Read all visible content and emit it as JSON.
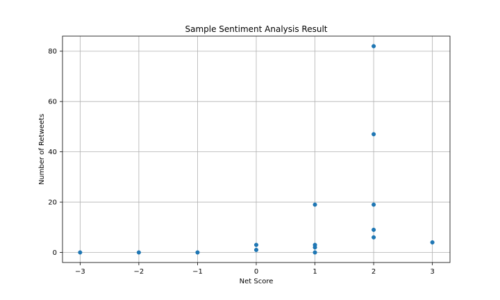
{
  "chart_data": {
    "type": "scatter",
    "title": "Sample Sentiment Analysis Result",
    "xlabel": "Net Score",
    "ylabel": "Number of Retweets",
    "xlim": [
      -3.3,
      3.3
    ],
    "ylim": [
      -4,
      86
    ],
    "xticks": [
      -3,
      -2,
      -1,
      0,
      1,
      2,
      3
    ],
    "xtick_labels": [
      "−3",
      "−2",
      "−1",
      "0",
      "1",
      "2",
      "3"
    ],
    "yticks": [
      0,
      20,
      40,
      60,
      80
    ],
    "ytick_labels": [
      "0",
      "20",
      "40",
      "60",
      "80"
    ],
    "grid": true,
    "marker_color": "#1f77b4",
    "points": [
      {
        "x": -3,
        "y": 0
      },
      {
        "x": -2,
        "y": 0
      },
      {
        "x": -1,
        "y": 0
      },
      {
        "x": 0,
        "y": 1
      },
      {
        "x": 0,
        "y": 3
      },
      {
        "x": 1,
        "y": 0
      },
      {
        "x": 1,
        "y": 2
      },
      {
        "x": 1,
        "y": 3
      },
      {
        "x": 1,
        "y": 19
      },
      {
        "x": 2,
        "y": 6
      },
      {
        "x": 2,
        "y": 9
      },
      {
        "x": 2,
        "y": 19
      },
      {
        "x": 2,
        "y": 47
      },
      {
        "x": 2,
        "y": 82
      },
      {
        "x": 3,
        "y": 4
      }
    ]
  }
}
